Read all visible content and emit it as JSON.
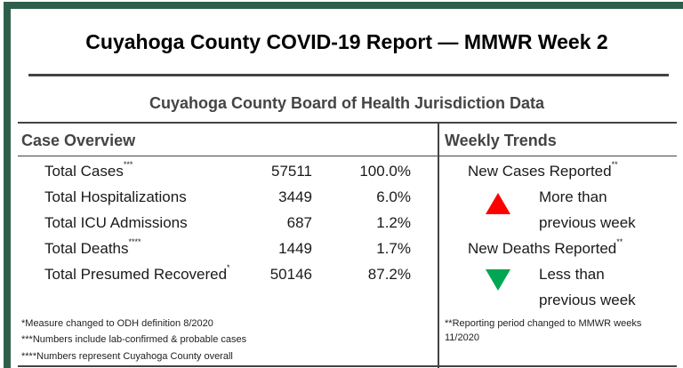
{
  "header": {
    "title": "Cuyahoga County COVID-19 Report — MMWR Week 2",
    "subtitle": "Cuyahoga County Board of Health Jurisdiction Data"
  },
  "case_overview": {
    "heading": "Case Overview",
    "rows": [
      {
        "label": "Total Cases",
        "mark": "***",
        "count": "57511",
        "percent": "100.0%"
      },
      {
        "label": "Total Hospitalizations",
        "mark": "",
        "count": "3449",
        "percent": "6.0%"
      },
      {
        "label": "Total ICU Admissions",
        "mark": "",
        "count": "687",
        "percent": "1.2%"
      },
      {
        "label": "Total Deaths",
        "mark": "****",
        "count": "1449",
        "percent": "1.7%"
      },
      {
        "label": "Total Presumed Recovered",
        "mark": "*",
        "count": "50146",
        "percent": "87.2%"
      }
    ],
    "footnotes": [
      {
        "mark": "*",
        "text": "Measure changed to ODH definition 8/2020"
      },
      {
        "mark": "***",
        "text": "Numbers include lab-confirmed & probable cases"
      },
      {
        "mark": "****",
        "text": "Numbers represent Cuyahoga County overall"
      }
    ]
  },
  "weekly_trends": {
    "heading": "Weekly Trends",
    "cases": {
      "label": "New Cases Reported",
      "mark": "**",
      "direction": "up",
      "color": "#ff0000",
      "line1": "More than",
      "line2": "previous week"
    },
    "deaths": {
      "label": "New Deaths Reported",
      "mark": "**",
      "direction": "down",
      "color": "#00a651",
      "line1": "Less than",
      "line2": "previous week"
    },
    "footnote": {
      "mark": "**",
      "text": "Reporting period changed to MMWR weeks",
      "text2": "11/2020"
    }
  },
  "colors": {
    "frame": "#2f5f4a",
    "heading": "#444444"
  }
}
